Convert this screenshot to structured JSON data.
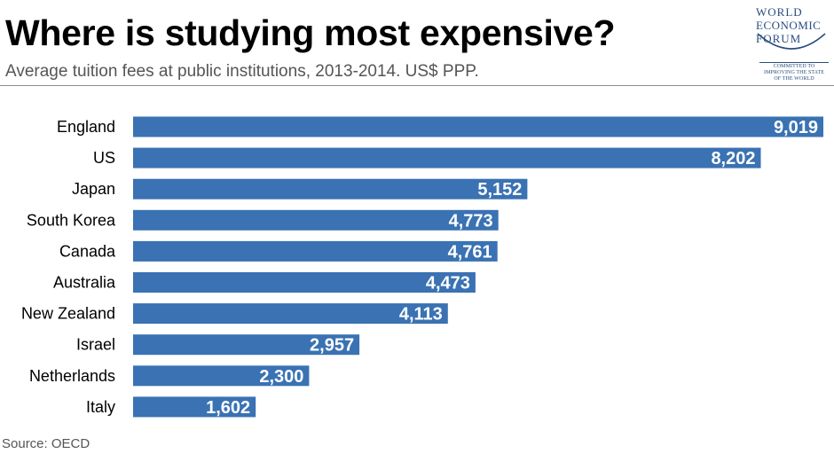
{
  "header": {
    "title": "Where is studying most expensive?",
    "subtitle": "Average tuition fees at public institutions, 2013-2014. US$ PPP."
  },
  "logo": {
    "line1": "WORLD",
    "line2": "ECONOMIC",
    "line3": "FORUM",
    "tagline1": "COMMITTED TO",
    "tagline2": "IMPROVING THE STATE",
    "tagline3": "OF THE WORLD",
    "icon": "wef-arc-icon"
  },
  "footer": {
    "source": "Source: OECD"
  },
  "colors": {
    "bar": "#3a72b3",
    "value_label": "#ffffff",
    "logo": "#2a4d7f"
  },
  "chart_data": {
    "type": "bar",
    "orientation": "horizontal",
    "title": "Where is studying most expensive?",
    "subtitle": "Average tuition fees at public institutions, 2013-2014. US$ PPP.",
    "categories": [
      "England",
      "US",
      "Japan",
      "South Korea",
      "Canada",
      "Australia",
      "New Zealand",
      "Israel",
      "Netherlands",
      "Italy"
    ],
    "values": [
      9019,
      8202,
      5152,
      4773,
      4761,
      4473,
      4113,
      2957,
      2300,
      1602
    ],
    "value_labels": [
      "9,019",
      "8,202",
      "5,152",
      "4,773",
      "4,761",
      "4,473",
      "4,113",
      "2,957",
      "2,300",
      "1,602"
    ],
    "xlim": [
      0,
      9019
    ],
    "grid": false,
    "legend": "none",
    "source": "Source: OECD"
  }
}
